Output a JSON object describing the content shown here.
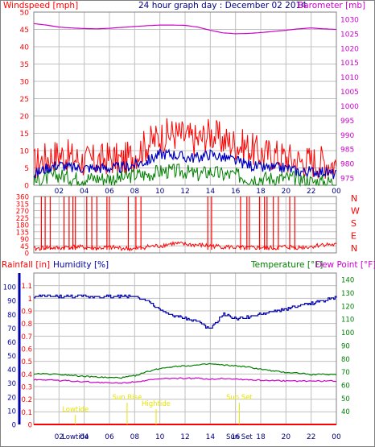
{
  "title": "24 hour graph day : December 02 2014",
  "colors": {
    "wind": "#ff0000",
    "gust_avg": "#0000c0",
    "wind_low": "#008000",
    "barometer": "#cc00cc",
    "rain": "#ff0000",
    "humidity": "#0000aa",
    "temperature": "#008000",
    "dewpoint": "#cc00cc",
    "astro": "#e6e600",
    "grid": "#c0c0c0"
  },
  "chart_data": [
    {
      "type": "line",
      "name": "wind-barometer",
      "left_label": "Windspeed [mph]",
      "right_label": "Barometer [mb]",
      "x_ticks": [
        "02",
        "04",
        "06",
        "08",
        "10",
        "12",
        "14",
        "16",
        "18",
        "20",
        "22",
        "00"
      ],
      "left_ticks": [
        0,
        5,
        10,
        15,
        20,
        25,
        30,
        35,
        40,
        45,
        50
      ],
      "right_ticks": [
        975,
        980,
        985,
        990,
        995,
        1000,
        1005,
        1010,
        1015,
        1020,
        1025,
        1030
      ],
      "ylim_left": [
        0,
        50
      ],
      "ylim_right": [
        972.5,
        1032.5
      ],
      "hours": [
        0,
        1,
        2,
        3,
        4,
        5,
        6,
        7,
        8,
        9,
        10,
        11,
        12,
        13,
        14,
        15,
        16,
        17,
        18,
        19,
        20,
        21,
        22,
        23,
        24
      ],
      "series": [
        {
          "key": "wind_gust",
          "values": [
            6,
            8,
            9,
            8,
            7,
            7,
            8,
            7,
            9,
            12,
            14,
            15,
            14,
            13,
            15,
            13,
            12,
            11,
            9,
            9,
            8,
            7,
            7,
            7,
            6
          ]
        },
        {
          "key": "wind_avg",
          "values": [
            3,
            5,
            6,
            5,
            5,
            5,
            5,
            5,
            6,
            7,
            9,
            9,
            8,
            8,
            9,
            8,
            7,
            6,
            5,
            5,
            5,
            4,
            4,
            4,
            3
          ]
        },
        {
          "key": "wind_low",
          "values": [
            1,
            2,
            3,
            2,
            2,
            2,
            2,
            2,
            3,
            3,
            4,
            4,
            4,
            3,
            4,
            3,
            3,
            2,
            2,
            2,
            2,
            2,
            1,
            1,
            1
          ]
        },
        {
          "key": "barometer",
          "values": [
            1028.5,
            1028,
            1027.3,
            1027,
            1026.8,
            1026.7,
            1026.9,
            1027.2,
            1027.5,
            1027.8,
            1028,
            1028,
            1027.9,
            1027.3,
            1026.2,
            1025.3,
            1025,
            1025.1,
            1025.4,
            1025.8,
            1026.2,
            1026.7,
            1027,
            1026.7,
            1026.5
          ]
        }
      ]
    },
    {
      "type": "line",
      "name": "wind-direction",
      "left_ticks": [
        0,
        45,
        90,
        135,
        180,
        225,
        270,
        315,
        360
      ],
      "right_labels": [
        "N",
        "W",
        "S",
        "E",
        "N"
      ],
      "ylim": [
        0,
        360
      ],
      "hours": [
        0,
        1,
        2,
        3,
        4,
        5,
        6,
        7,
        8,
        9,
        10,
        11,
        12,
        13,
        14,
        15,
        16,
        17,
        18,
        19,
        20,
        21,
        22,
        23,
        24
      ],
      "values": [
        25,
        35,
        30,
        40,
        35,
        30,
        35,
        30,
        25,
        40,
        45,
        60,
        55,
        50,
        45,
        40,
        35,
        30,
        35,
        30,
        40,
        35,
        40,
        55,
        50
      ]
    },
    {
      "type": "line",
      "name": "rain-humidity-temperature",
      "labels": {
        "rain": "Rainfall [in]",
        "humidity": "Humidity [%]",
        "temperature": "Temperature [°F]",
        "dewpoint": "Dew Point [°F]"
      },
      "x_ticks": [
        "02",
        "04",
        "06",
        "08",
        "10",
        "12",
        "14",
        "16",
        "18",
        "20",
        "22",
        "00"
      ],
      "rain_ticks": [
        "0",
        "0.1",
        "0.2",
        "0.3",
        "0.4",
        "0.5",
        "0.6",
        "0.7",
        "0.8",
        "0.9",
        "1",
        "1.1"
      ],
      "humidity_ticks": [
        0,
        10,
        20,
        30,
        40,
        50,
        60,
        70,
        80,
        90,
        100
      ],
      "temp_ticks": [
        40,
        50,
        60,
        70,
        80,
        90,
        100,
        110,
        120,
        130,
        140
      ],
      "ylim_rain": [
        0,
        1.2
      ],
      "ylim_temp": [
        30,
        145
      ],
      "hours": [
        0,
        1,
        2,
        3,
        4,
        5,
        6,
        7,
        8,
        9,
        10,
        11,
        12,
        13,
        14,
        15,
        16,
        17,
        18,
        19,
        20,
        21,
        22,
        23,
        24
      ],
      "series": [
        {
          "key": "rainfall",
          "values": [
            0,
            0,
            0,
            0,
            0,
            0,
            0,
            0,
            0,
            0,
            0,
            0,
            0,
            0,
            0,
            0,
            0,
            0,
            0,
            0,
            0,
            0,
            0,
            0,
            0
          ]
        },
        {
          "key": "humidity",
          "values": [
            93,
            93,
            93,
            93,
            93,
            93,
            93,
            93,
            93,
            90,
            83,
            79,
            77,
            75,
            69,
            80,
            77,
            78,
            80,
            82,
            84,
            86,
            88,
            90,
            92
          ]
        },
        {
          "key": "temperature",
          "values": [
            68.5,
            68.5,
            68,
            67.5,
            66.5,
            66,
            65.5,
            65.5,
            67,
            70,
            72.5,
            74,
            74.5,
            75,
            76,
            75,
            74.5,
            73.5,
            72,
            70.5,
            69.5,
            69,
            68,
            68,
            68
          ]
        },
        {
          "key": "dewpoint",
          "values": [
            64,
            64,
            63.5,
            63,
            62.5,
            62,
            61.5,
            61.5,
            62.5,
            63.5,
            64.5,
            65,
            65,
            65,
            64.5,
            65,
            64.5,
            64,
            63.5,
            63.5,
            63,
            63,
            63,
            63,
            63
          ]
        }
      ],
      "astro": [
        {
          "label": "Lowtide",
          "hour": 3.3,
          "row": "low"
        },
        {
          "label": "Sun Rise",
          "hour": 7.4,
          "row": "high"
        },
        {
          "label": "Hightide",
          "hour": 9.7,
          "row": "mid"
        },
        {
          "label": "Sun Set",
          "hour": 16.3,
          "row": "high"
        }
      ],
      "bottom_overlays": [
        "Lowtide",
        "Sun Set"
      ]
    }
  ]
}
